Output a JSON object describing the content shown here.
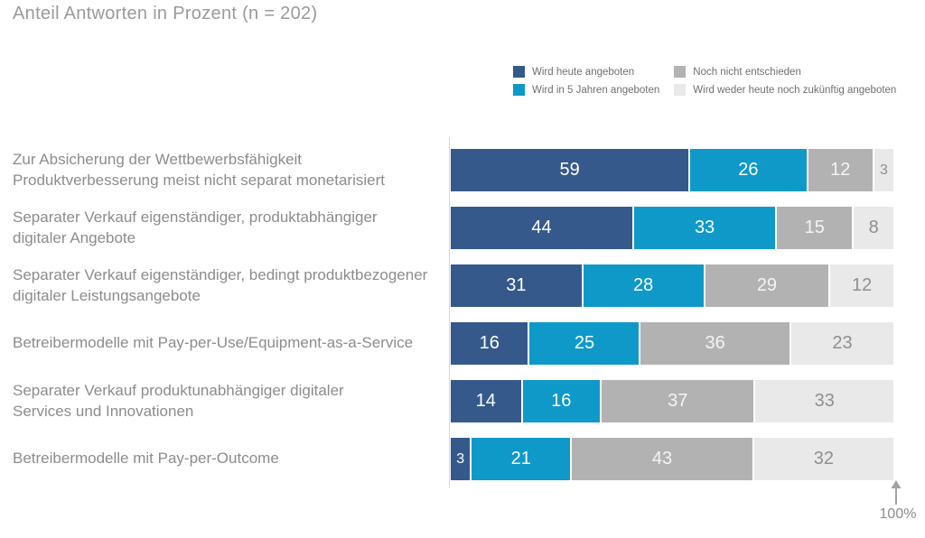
{
  "title": "Anteil Antworten in Prozent (n = 202)",
  "colors": {
    "series_dark_blue": "#35598b",
    "series_light_blue": "#0e99c9",
    "series_gray": "#b2b2b2",
    "series_light_gray": "#e9e9e9",
    "axis_line": "#d8d8d8",
    "text_gray": "#8c8c8c",
    "title_gray": "#9a9a9a"
  },
  "legend": {
    "items": [
      {
        "label": "Wird heute angeboten",
        "color": "#35598b"
      },
      {
        "label": "Wird in 5 Jahren angeboten",
        "color": "#0e99c9"
      },
      {
        "label": "Noch nicht entschieden",
        "color": "#b2b2b2"
      },
      {
        "label": "Wird weder heute noch zukünftig angeboten",
        "color": "#e9e9e9"
      }
    ]
  },
  "chart_data": {
    "type": "bar",
    "orientation": "horizontal",
    "stacked": true,
    "title": "Anteil Antworten in Prozent (n = 202)",
    "xlim": [
      0,
      100
    ],
    "unit": "percent",
    "grid": false,
    "legend_position": "top-right",
    "categories": [
      "Zur Absicherung der Wettbewerbsfähigkeit\nProduktverbesserung meist nicht separat monetarisiert",
      "Separater Verkauf eigenständiger, produktabhängiger\ndigitaler Angebote",
      "Separater Verkauf eigenständiger, bedingt produktbezogener\ndigitaler Leistungsangebote",
      "Betreibermodelle mit Pay-per-Use/Equipment-as-a-Service",
      "Separater Verkauf produktunabhängiger digitaler\nServices und Innovationen",
      "Betreibermodelle mit Pay-per-Outcome"
    ],
    "series": [
      {
        "name": "Wird heute angeboten",
        "color": "#35598b",
        "value_color": "#ffffff",
        "values": [
          59,
          44,
          31,
          16,
          14,
          3
        ]
      },
      {
        "name": "Wird in 5 Jahren angeboten",
        "color": "#0e99c9",
        "value_color": "#ffffff",
        "values": [
          26,
          33,
          28,
          25,
          16,
          21
        ]
      },
      {
        "name": "Noch nicht entschieden",
        "color": "#b2b2b2",
        "value_color": "#f4f4f4",
        "values": [
          12,
          15,
          29,
          36,
          37,
          43
        ]
      },
      {
        "name": "Wird weder heute noch zukünftig angeboten",
        "color": "#e9e9e9",
        "value_color": "#8f8f8f",
        "values": [
          3,
          8,
          12,
          23,
          33,
          32
        ]
      }
    ]
  },
  "axis": {
    "max_label": "100%"
  }
}
